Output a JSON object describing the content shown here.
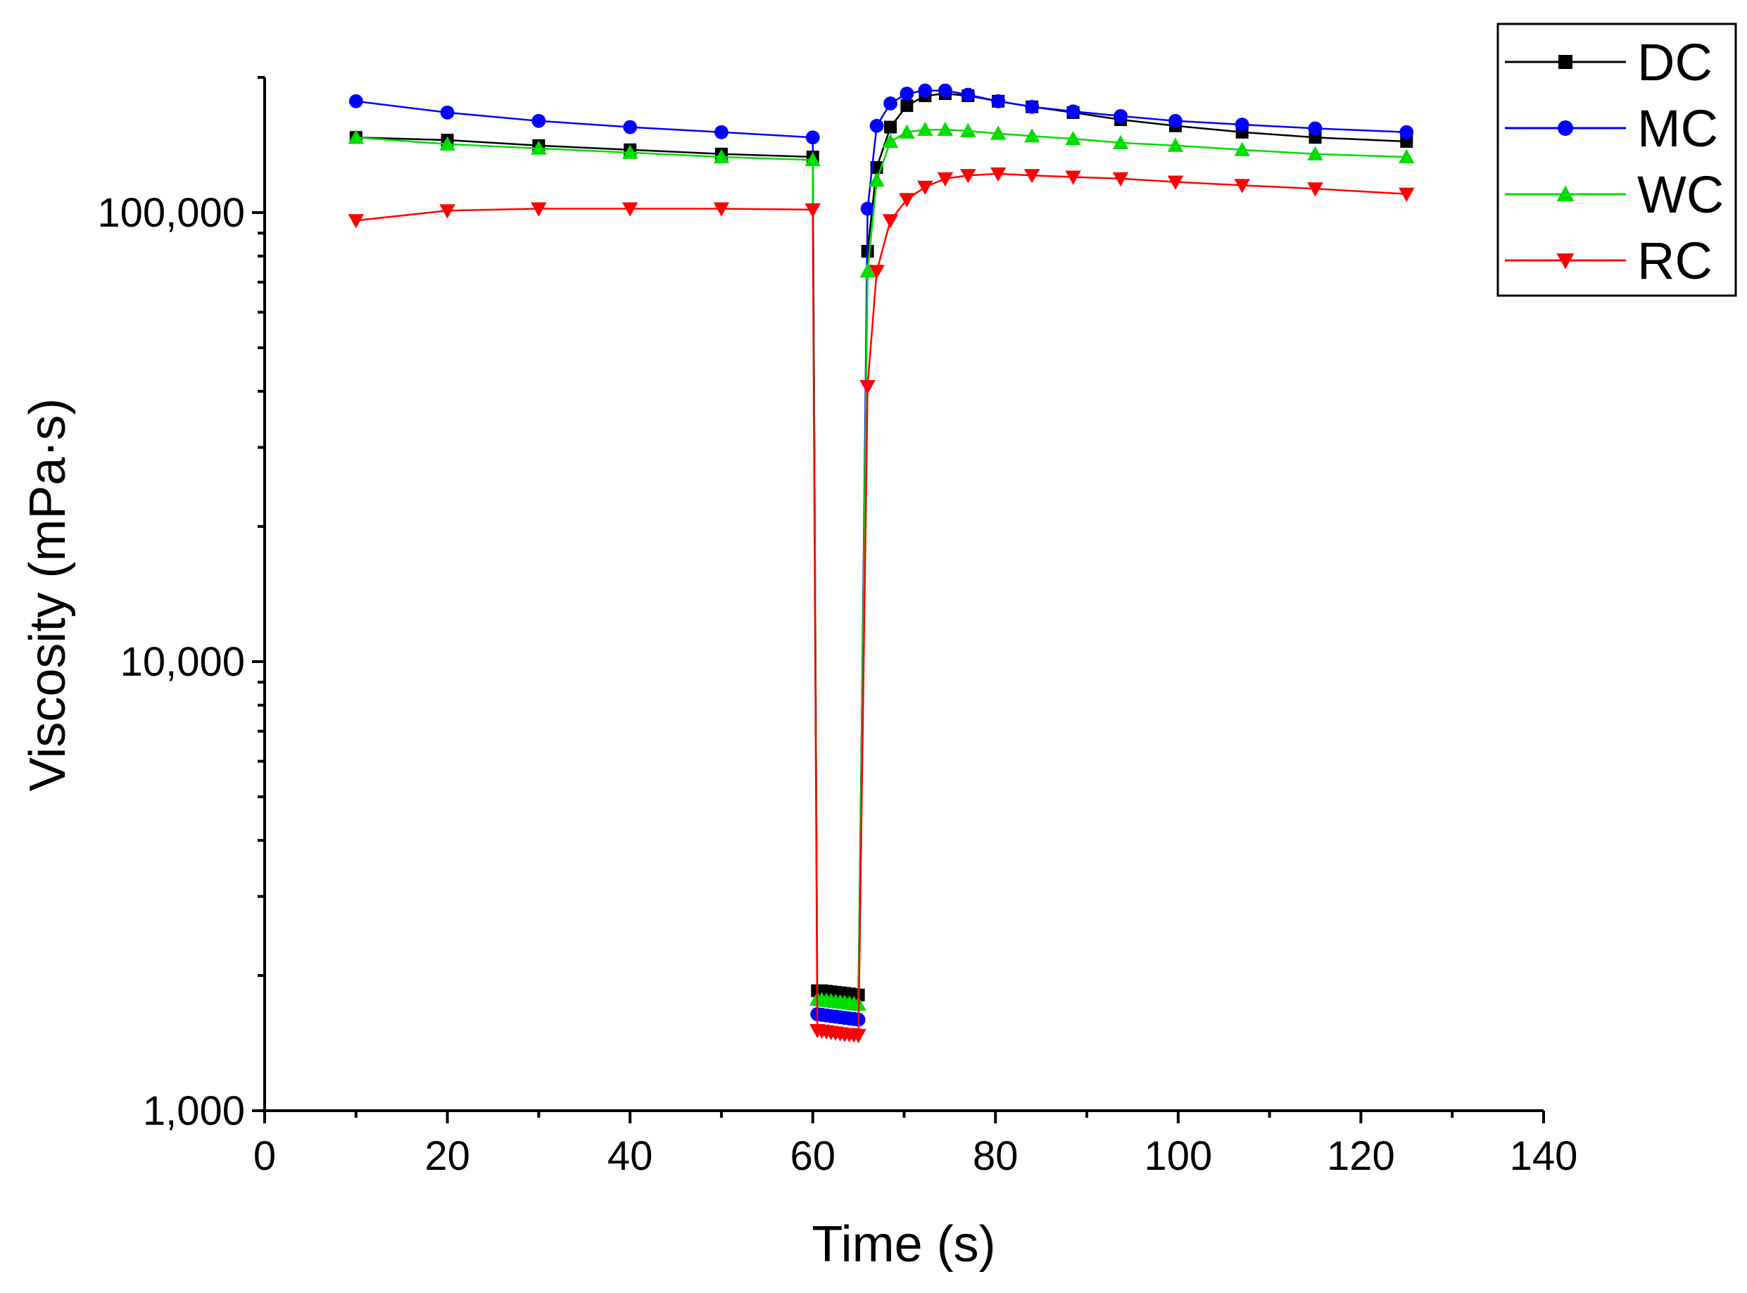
{
  "chart_data": {
    "type": "line",
    "title": "",
    "xlabel": "Time (s)",
    "ylabel": "Viscosity (mPa·s)",
    "xlim": [
      0,
      140
    ],
    "ylim": [
      1000,
      200000
    ],
    "yscale": "log",
    "grid": false,
    "legend_position": "top-right outside",
    "x_ticks": [
      0,
      20,
      40,
      60,
      80,
      100,
      120,
      140
    ],
    "x_tick_labels": [
      "0",
      "20",
      "40",
      "60",
      "80",
      "100",
      "120",
      "140"
    ],
    "y_ticks": [
      1000,
      10000,
      100000
    ],
    "y_tick_labels": [
      "1,000",
      "10,000",
      "100,000"
    ],
    "series": [
      {
        "name": "DC",
        "color": "#000000",
        "marker": "square",
        "x": [
          10,
          20,
          30,
          40,
          50,
          60,
          60.5,
          61,
          61.5,
          62,
          62.5,
          63,
          63.5,
          64,
          64.5,
          65,
          66,
          67,
          68.5,
          70.3,
          72.3,
          74.5,
          77,
          80.3,
          84,
          88.5,
          93.7,
          99.7,
          107,
          115,
          125
        ],
        "y": [
          147000,
          145000,
          141000,
          138000,
          135000,
          133000,
          1850,
          1850,
          1845,
          1840,
          1835,
          1830,
          1825,
          1820,
          1815,
          1810,
          82000,
          126000,
          155000,
          173000,
          182000,
          184000,
          182000,
          177000,
          172000,
          167000,
          161000,
          156000,
          151000,
          147000,
          144000
        ]
      },
      {
        "name": "MC",
        "color": "#0000ff",
        "marker": "circle",
        "x": [
          10,
          20,
          30,
          40,
          50,
          60,
          60.5,
          61,
          61.5,
          62,
          62.5,
          63,
          63.5,
          64,
          64.5,
          65,
          66,
          67,
          68.5,
          70.3,
          72.3,
          74.5,
          77,
          80.3,
          84,
          88.5,
          93.7,
          99.7,
          107,
          115,
          125
        ],
        "y": [
          177000,
          167000,
          160000,
          155000,
          151000,
          147000,
          1640,
          1635,
          1630,
          1625,
          1620,
          1615,
          1610,
          1605,
          1600,
          1595,
          102000,
          156000,
          175000,
          184000,
          187000,
          187000,
          183000,
          177000,
          172000,
          168000,
          164000,
          160000,
          157000,
          154000,
          151000
        ]
      },
      {
        "name": "WC",
        "color": "#00dd00",
        "marker": "triangle-up",
        "x": [
          10,
          20,
          30,
          40,
          50,
          60,
          60.5,
          61,
          61.5,
          62,
          62.5,
          63,
          63.5,
          64,
          64.5,
          65,
          66,
          67,
          68.5,
          70.3,
          72.3,
          74.5,
          77,
          80.3,
          84,
          88.5,
          93.7,
          99.7,
          107,
          115,
          125
        ],
        "y": [
          147000,
          142000,
          139000,
          136000,
          133000,
          131000,
          1770,
          1765,
          1760,
          1755,
          1750,
          1745,
          1740,
          1735,
          1730,
          1725,
          74000,
          118000,
          144000,
          151000,
          153000,
          153000,
          152000,
          150000,
          148000,
          146000,
          143000,
          141000,
          138000,
          135000,
          133000
        ]
      },
      {
        "name": "RC",
        "color": "#ff0000",
        "marker": "triangle-down",
        "x": [
          10,
          20,
          30,
          40,
          50,
          60,
          60.5,
          61,
          61.5,
          62,
          62.5,
          63,
          63.5,
          64,
          64.5,
          65,
          66,
          67,
          68.5,
          70.3,
          72.3,
          74.5,
          77,
          80.3,
          84,
          88.5,
          93.7,
          99.7,
          107,
          115,
          125
        ],
        "y": [
          96000,
          101000,
          102000,
          102000,
          102000,
          101500,
          1510,
          1505,
          1500,
          1495,
          1490,
          1485,
          1480,
          1478,
          1475,
          1472,
          41000,
          74000,
          96000,
          107000,
          114000,
          119000,
          121000,
          122000,
          121000,
          120000,
          119000,
          117000,
          115000,
          113000,
          110000
        ]
      }
    ]
  }
}
